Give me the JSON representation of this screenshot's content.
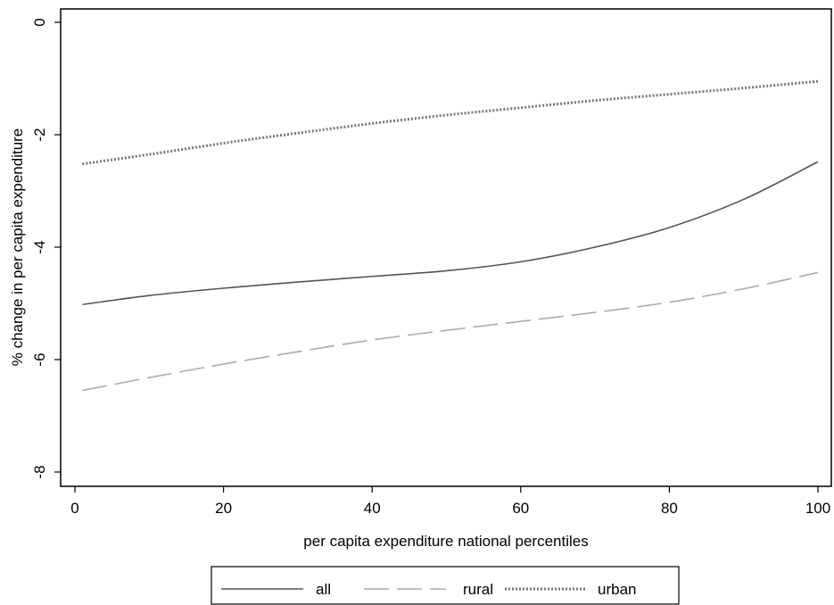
{
  "chart_data": {
    "type": "line",
    "title": "",
    "xlabel": "per capita expenditure national percentiles",
    "ylabel": "% change in per capita expenditure",
    "xlim": [
      0,
      100
    ],
    "ylim": [
      -8,
      0
    ],
    "xticks": [
      0,
      20,
      40,
      60,
      80,
      100
    ],
    "yticks": [
      0,
      -2,
      -4,
      -6,
      -8
    ],
    "grid": false,
    "legend_position": "bottom",
    "series": [
      {
        "name": "all",
        "style": "solid",
        "color": "#555555",
        "x": [
          1,
          10,
          20,
          30,
          40,
          50,
          60,
          70,
          80,
          90,
          100
        ],
        "y": [
          -5.02,
          -4.86,
          -4.73,
          -4.62,
          -4.52,
          -4.42,
          -4.26,
          -4.0,
          -3.65,
          -3.15,
          -2.48
        ]
      },
      {
        "name": "rural",
        "style": "dashed",
        "color": "#aaaaaa",
        "x": [
          1,
          10,
          20,
          30,
          40,
          50,
          60,
          70,
          80,
          90,
          100
        ],
        "y": [
          -6.55,
          -6.32,
          -6.08,
          -5.86,
          -5.65,
          -5.48,
          -5.32,
          -5.16,
          -4.98,
          -4.74,
          -4.45
        ]
      },
      {
        "name": "urban",
        "style": "dotted",
        "color": "#777777",
        "x": [
          1,
          10,
          20,
          30,
          40,
          50,
          60,
          70,
          80,
          90,
          100
        ],
        "y": [
          -2.52,
          -2.35,
          -2.15,
          -1.97,
          -1.8,
          -1.65,
          -1.52,
          -1.39,
          -1.28,
          -1.17,
          -1.05
        ]
      }
    ]
  }
}
